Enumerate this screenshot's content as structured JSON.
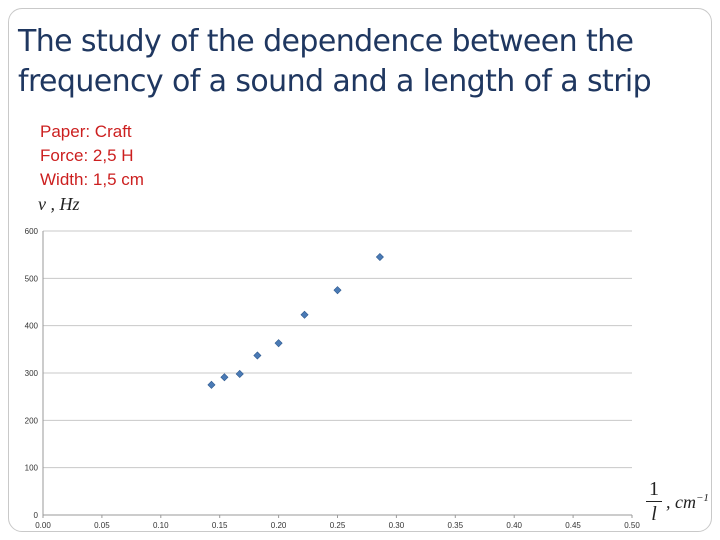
{
  "slide": {
    "title_line1": "The study of the dependence between the",
    "title_line2": "frequency of a sound and a length of a strip",
    "params": [
      "Paper: Craft",
      "Force: 2,5 H",
      "Width: 1,5 cm"
    ],
    "y_axis_label": "ν , Hz",
    "x_axis_label": {
      "numerator": "1",
      "denominator": "l",
      "unit": ", cm",
      "exponent": "−1"
    }
  },
  "chart_data": {
    "type": "scatter",
    "x_ticks": [
      "0.00",
      "0.05",
      "0.10",
      "0.15",
      "0.20",
      "0.25",
      "0.30",
      "0.35",
      "0.40",
      "0.45",
      "0.50"
    ],
    "y_ticks": [
      "0",
      "100",
      "200",
      "300",
      "400",
      "500",
      "600"
    ],
    "xlim": [
      0,
      0.5
    ],
    "ylim": [
      0,
      600
    ],
    "grid": "horizontal",
    "marker_color": "#4a7ab5",
    "points": [
      {
        "x": 0.143,
        "y": 275
      },
      {
        "x": 0.154,
        "y": 291
      },
      {
        "x": 0.167,
        "y": 298
      },
      {
        "x": 0.182,
        "y": 337
      },
      {
        "x": 0.2,
        "y": 363
      },
      {
        "x": 0.222,
        "y": 423
      },
      {
        "x": 0.25,
        "y": 475
      },
      {
        "x": 0.286,
        "y": 545
      }
    ]
  }
}
